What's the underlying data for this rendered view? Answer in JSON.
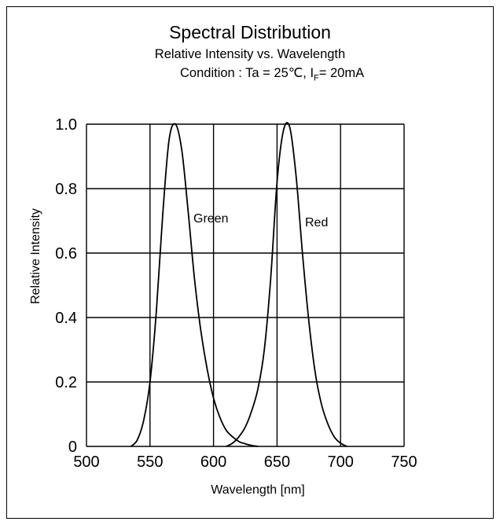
{
  "chart_data": {
    "type": "line",
    "title": "Spectral Distribution",
    "subtitle": "Relative Intensity vs. Wavelength",
    "condition": {
      "prefix": "Condition : Ta = 25℃, I",
      "sub": "F",
      "suffix": "= 20mA"
    },
    "xlabel": "Wavelength [nm]",
    "ylabel": "Relative Intensity",
    "xlim": [
      500,
      750
    ],
    "ylim": [
      0,
      1.0
    ],
    "x_ticks": [
      "500",
      "550",
      "600",
      "650",
      "700",
      "750"
    ],
    "y_ticks": [
      "0",
      "0.2",
      "0.4",
      "0.6",
      "0.8",
      "1.0"
    ],
    "grid": true,
    "series": [
      {
        "name": "Green",
        "x": [
          535,
          540,
          545,
          550,
          555,
          560,
          565,
          570,
          575,
          580,
          585,
          590,
          595,
          600,
          605,
          610,
          615,
          620,
          625,
          630,
          635
        ],
        "values": [
          0.0,
          0.02,
          0.08,
          0.2,
          0.42,
          0.72,
          0.95,
          1.0,
          0.92,
          0.73,
          0.52,
          0.36,
          0.24,
          0.15,
          0.09,
          0.05,
          0.03,
          0.015,
          0.008,
          0.003,
          0.0
        ]
      },
      {
        "name": "Red",
        "x": [
          610,
          615,
          620,
          625,
          630,
          635,
          640,
          645,
          650,
          655,
          660,
          665,
          670,
          675,
          680,
          685,
          690,
          695,
          700,
          705
        ],
        "values": [
          0.0,
          0.01,
          0.03,
          0.06,
          0.11,
          0.18,
          0.3,
          0.52,
          0.82,
          0.98,
          0.99,
          0.84,
          0.6,
          0.39,
          0.23,
          0.13,
          0.07,
          0.03,
          0.01,
          0.0
        ]
      }
    ]
  }
}
